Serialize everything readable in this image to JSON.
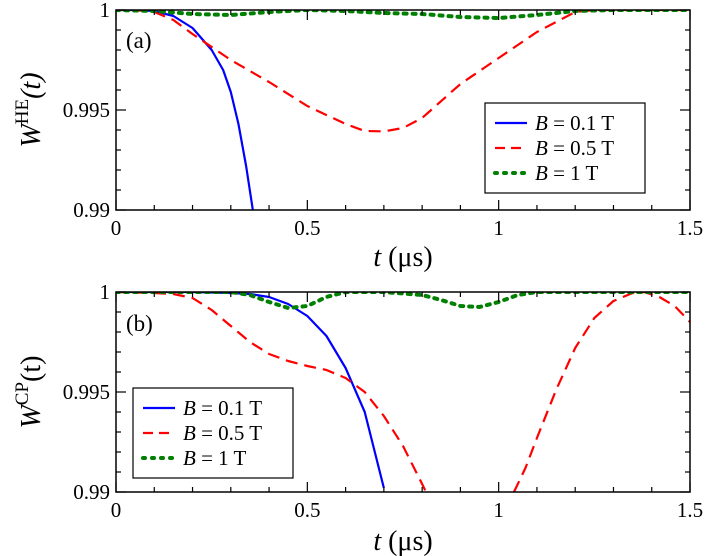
{
  "chart_data": [
    {
      "type": "line",
      "panel_label": "(a)",
      "xlabel": {
        "var": "t",
        "unit": " (μs)"
      },
      "ylabel": {
        "main": "W",
        "sup": "HE",
        "arg": "(t)"
      },
      "xlim": [
        0,
        1.5
      ],
      "ylim": [
        0.99,
        1.0
      ],
      "xticks": [
        0,
        0.5,
        1,
        1.5
      ],
      "xtick_labels": [
        "0",
        "0.5",
        "1",
        "1.5"
      ],
      "yticks": [
        0.99,
        0.995,
        1.0
      ],
      "ytick_labels": [
        "0.99",
        "0.995",
        "1"
      ],
      "grid": false,
      "legend_position": "right",
      "series": [
        {
          "name": "B = 0.1 T",
          "legend": {
            "var": "B",
            "rest": " = 0.1 T"
          },
          "color": "#0000ff",
          "style": "solid",
          "x": [
            0,
            0.05,
            0.1,
            0.15,
            0.2,
            0.25,
            0.28,
            0.3,
            0.32,
            0.34,
            0.36
          ],
          "y": [
            1.0,
            1.0,
            0.99995,
            0.9997,
            0.9991,
            0.998,
            0.997,
            0.9959,
            0.9943,
            0.9922,
            0.9897
          ]
        },
        {
          "name": "B = 0.5 T",
          "legend": {
            "var": "B",
            "rest": " = 0.5 T"
          },
          "color": "#ff0000",
          "style": "dashed",
          "x": [
            0,
            0.05,
            0.1,
            0.15,
            0.2,
            0.3,
            0.4,
            0.5,
            0.6,
            0.65,
            0.7,
            0.75,
            0.8,
            0.9,
            1.0,
            1.1,
            1.2,
            1.25,
            1.3,
            1.35,
            1.4,
            1.5
          ],
          "y": [
            1.0,
            1.0,
            0.9999,
            0.9995,
            0.9988,
            0.9975,
            0.9964,
            0.9952,
            0.9943,
            0.99395,
            0.99393,
            0.9941,
            0.9946,
            0.9963,
            0.9976,
            0.9989,
            0.9999,
            1.0,
            1.0,
            1.0,
            1.0,
            1.0
          ]
        },
        {
          "name": "B = 1 T",
          "legend": {
            "var": "B",
            "rest": " = 1 T"
          },
          "color": "#008000",
          "style": "dotted",
          "x": [
            0,
            0.1,
            0.2,
            0.3,
            0.4,
            0.5,
            0.6,
            0.7,
            0.8,
            0.9,
            1.0,
            1.1,
            1.2,
            1.3,
            1.4,
            1.5
          ],
          "y": [
            1.0,
            0.99995,
            0.9998,
            0.99975,
            0.9999,
            1.0,
            0.99995,
            0.99985,
            0.9998,
            0.99965,
            0.9996,
            0.99975,
            0.99995,
            1.0,
            1.0,
            1.0
          ]
        }
      ]
    },
    {
      "type": "line",
      "panel_label": "(b)",
      "xlabel": {
        "var": "t",
        "unit": " (μs)"
      },
      "ylabel": {
        "main": "W",
        "sup": "CP",
        "arg": "(t)"
      },
      "xlim": [
        0,
        1.5
      ],
      "ylim": [
        0.99,
        1.0
      ],
      "xticks": [
        0,
        0.5,
        1,
        1.5
      ],
      "xtick_labels": [
        "0",
        "0.5",
        "1",
        "1.5"
      ],
      "yticks": [
        0.99,
        0.995,
        1.0
      ],
      "ytick_labels": [
        "0.99",
        "0.995",
        "1"
      ],
      "grid": false,
      "legend_position": "left",
      "series": [
        {
          "name": "B = 0.1 T",
          "legend": {
            "var": "B",
            "rest": " = 0.1 T"
          },
          "color": "#0000ff",
          "style": "solid",
          "x": [
            0,
            0.1,
            0.2,
            0.3,
            0.35,
            0.4,
            0.45,
            0.5,
            0.55,
            0.6,
            0.65,
            0.7
          ],
          "y": [
            1.0,
            1.0,
            1.0,
            0.99995,
            0.9999,
            0.99975,
            0.9994,
            0.9988,
            0.9978,
            0.9962,
            0.994,
            0.9902
          ]
        },
        {
          "name": "B = 0.5 T",
          "legend": {
            "var": "B",
            "rest": " = 0.5 T"
          },
          "color": "#ff0000",
          "style": "dashed",
          "x": [
            0,
            0.1,
            0.15,
            0.2,
            0.25,
            0.3,
            0.35,
            0.4,
            0.45,
            0.5,
            0.55,
            0.6,
            0.65,
            0.7,
            0.75,
            0.8,
            0.81
          ],
          "y": [
            1.0,
            0.99995,
            0.9999,
            0.9997,
            0.9991,
            0.9983,
            0.9975,
            0.9969,
            0.99655,
            0.9963,
            0.9961,
            0.9957,
            0.995,
            0.9938,
            0.9923,
            0.9904,
            0.99
          ]
        },
        {
          "name": "",
          "legend": null,
          "color": "#ff0000",
          "style": "dashed",
          "x": [
            1.04,
            1.07,
            1.1,
            1.15,
            1.2,
            1.25,
            1.3,
            1.35,
            1.38,
            1.42,
            1.46,
            1.5
          ],
          "y": [
            0.99,
            0.9912,
            0.9927,
            0.9951,
            0.9972,
            0.9987,
            0.99955,
            0.99995,
            1.0,
            0.99975,
            0.9993,
            0.9985
          ]
        },
        {
          "name": "B = 1 T",
          "legend": {
            "var": "B",
            "rest": " = 1 T"
          },
          "color": "#008000",
          "style": "dotted",
          "x": [
            0,
            0.2,
            0.3,
            0.35,
            0.4,
            0.45,
            0.5,
            0.55,
            0.6,
            0.7,
            0.8,
            0.85,
            0.9,
            0.95,
            1.0,
            1.05,
            1.1,
            1.2,
            1.3,
            1.4,
            1.5
          ],
          "y": [
            1.0,
            1.0,
            1.0,
            0.99985,
            0.9995,
            0.9992,
            0.9993,
            0.99975,
            1.0,
            1.0,
            0.99985,
            0.9996,
            0.9993,
            0.99925,
            0.9995,
            0.99985,
            1.0,
            1.0,
            1.0,
            1.0,
            1.0
          ]
        }
      ]
    }
  ]
}
